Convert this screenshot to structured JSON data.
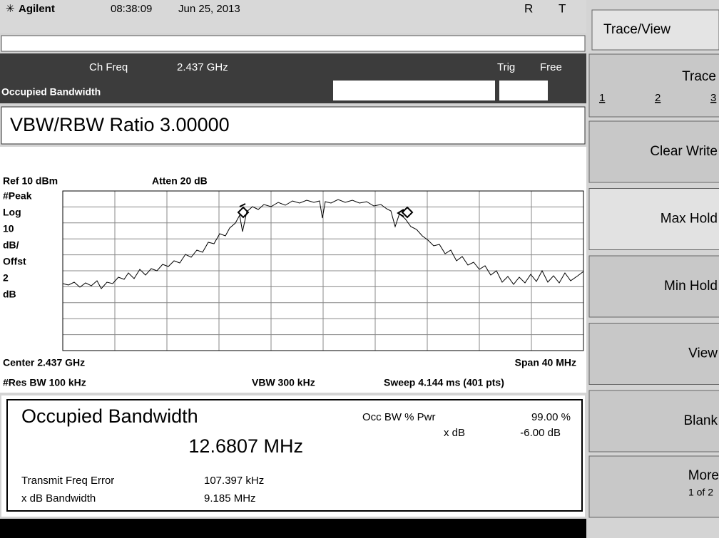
{
  "header": {
    "brand": "Agilent",
    "time": "08:38:09",
    "date": "Jun 25, 2013",
    "flags": [
      "R",
      "T"
    ]
  },
  "status": {
    "ch_freq_label": "Ch Freq",
    "ch_freq": "2.437 GHz",
    "trig_label": "Trig",
    "trig": "Free",
    "mode": "Occupied Bandwidth"
  },
  "entry": "VBW/RBW Ratio 3.00000",
  "graph": {
    "ref": "Ref 10 dBm",
    "atten": "Atten 20 dB",
    "scale_labels": [
      "#Peak",
      "Log",
      "10",
      "dB/",
      "Offst",
      "2",
      "dB"
    ],
    "center": "Center 2.437 GHz",
    "span": "Span 40 MHz",
    "res_bw": "#Res BW 100 kHz",
    "vbw": "VBW 300 kHz",
    "sweep": "Sweep 4.144 ms (401 pts)"
  },
  "results": {
    "title": "Occupied Bandwidth",
    "value": "12.6807 MHz",
    "occ_label": "Occ BW % Pwr",
    "occ_value": "99.00 %",
    "xdb_label": "x dB",
    "xdb_value": "-6.00 dB",
    "rows": [
      [
        "Transmit Freq Error",
        "107.397 kHz"
      ],
      [
        "x dB Bandwidth",
        "9.185 MHz"
      ]
    ]
  },
  "softkeys": {
    "title": "Trace/View",
    "trace": {
      "label": "Trace",
      "items": [
        "1",
        "2",
        "3"
      ]
    },
    "keys": [
      "Clear Write",
      "Max Hold",
      "Min Hold",
      "View",
      "Blank"
    ],
    "more": {
      "label": "More",
      "sub": "1 of 2"
    }
  }
}
